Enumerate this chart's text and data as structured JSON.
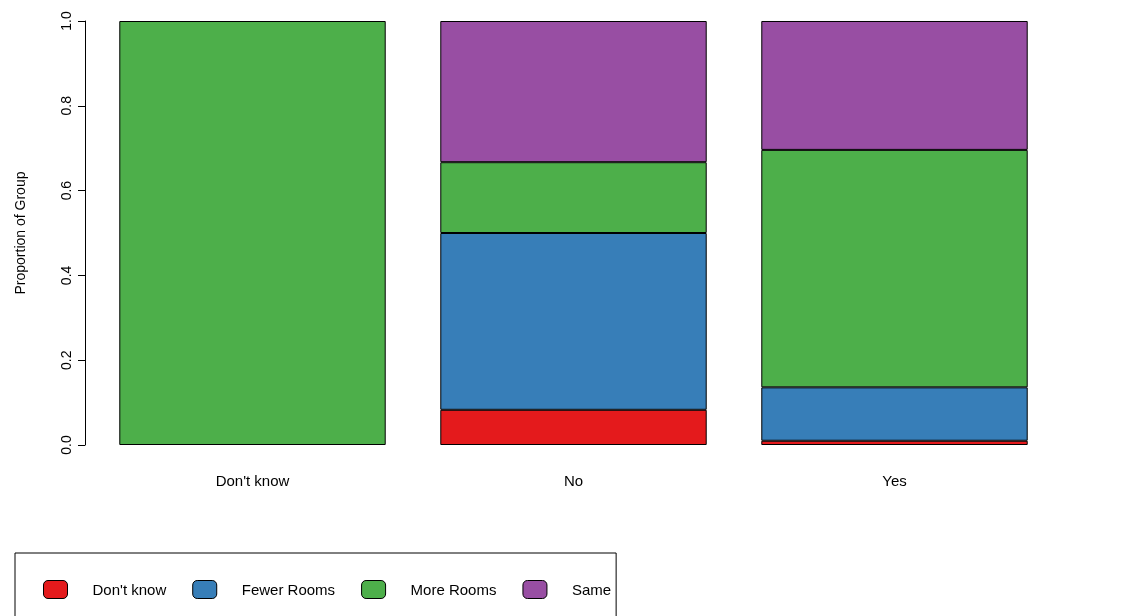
{
  "chart_data": {
    "type": "bar",
    "ylabel": "Proportion of Group",
    "categories": [
      "Don't know",
      "No",
      "Yes"
    ],
    "stacked": true,
    "series": [
      {
        "name": "Don't know",
        "color": "#e41a1c",
        "values": [
          0,
          0.083,
          0.01
        ]
      },
      {
        "name": "Fewer Rooms",
        "color": "#377eb8",
        "values": [
          0,
          0.417,
          0.126
        ]
      },
      {
        "name": "More Rooms",
        "color": "#4daf4a",
        "values": [
          1,
          0.167,
          0.56
        ]
      },
      {
        "name": "Same",
        "color": "#984ea3",
        "values": [
          0,
          0.333,
          0.304
        ]
      }
    ],
    "ylim": [
      0,
      1
    ],
    "yticks": [
      {
        "value": 0,
        "label": "0.0"
      },
      {
        "value": 0.2,
        "label": "0.2"
      },
      {
        "value": 0.4,
        "label": "0.4"
      },
      {
        "value": 0.6,
        "label": "0.6"
      },
      {
        "value": 0.8,
        "label": "0.8"
      },
      {
        "value": 1,
        "label": "1.0"
      }
    ],
    "grid": false,
    "legend": "bottom"
  }
}
